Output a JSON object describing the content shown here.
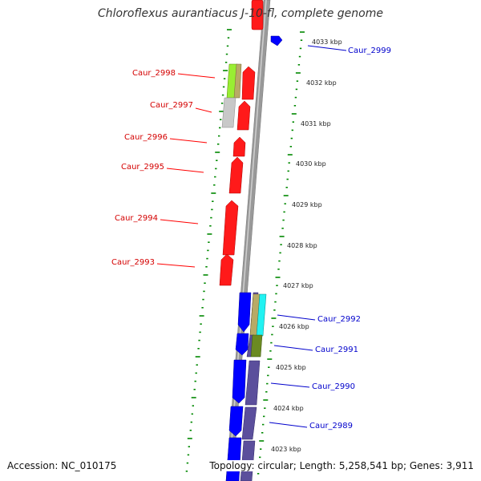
{
  "title": "Chloroflexus aurantiacus J-10-fl, complete genome",
  "accession": "Accession: NC_010175",
  "topology": "Topology: circular; Length: 5,258,541 bp; Genes: 3,911",
  "colors": {
    "forward_gene": "#ff0000",
    "reverse_gene": "#0000ff",
    "slate_gene": "#5b4f9c",
    "backbone": "#999999",
    "ticks": "#008800"
  },
  "gene_labels": {
    "caur_2998": "Caur_2998",
    "caur_2997": "Caur_2997",
    "caur_2996": "Caur_2996",
    "caur_2995": "Caur_2995",
    "caur_2994": "Caur_2994",
    "caur_2993": "Caur_2993",
    "caur_2999": "Caur_2999",
    "caur_2992": "Caur_2992",
    "caur_2991": "Caur_2991",
    "caur_2990": "Caur_2990",
    "caur_2989": "Caur_2989"
  },
  "kbp_labels": {
    "k4033": "4033 kbp",
    "k4032": "4032 kbp",
    "k4031": "4031 kbp",
    "k4030": "4030 kbp",
    "k4029": "4029 kbp",
    "k4028": "4028 kbp",
    "k4027": "4027 kbp",
    "k4026": "4026 kbp",
    "k4025": "4025 kbp",
    "k4024": "4024 kbp",
    "k4023": "4023 kbp"
  }
}
